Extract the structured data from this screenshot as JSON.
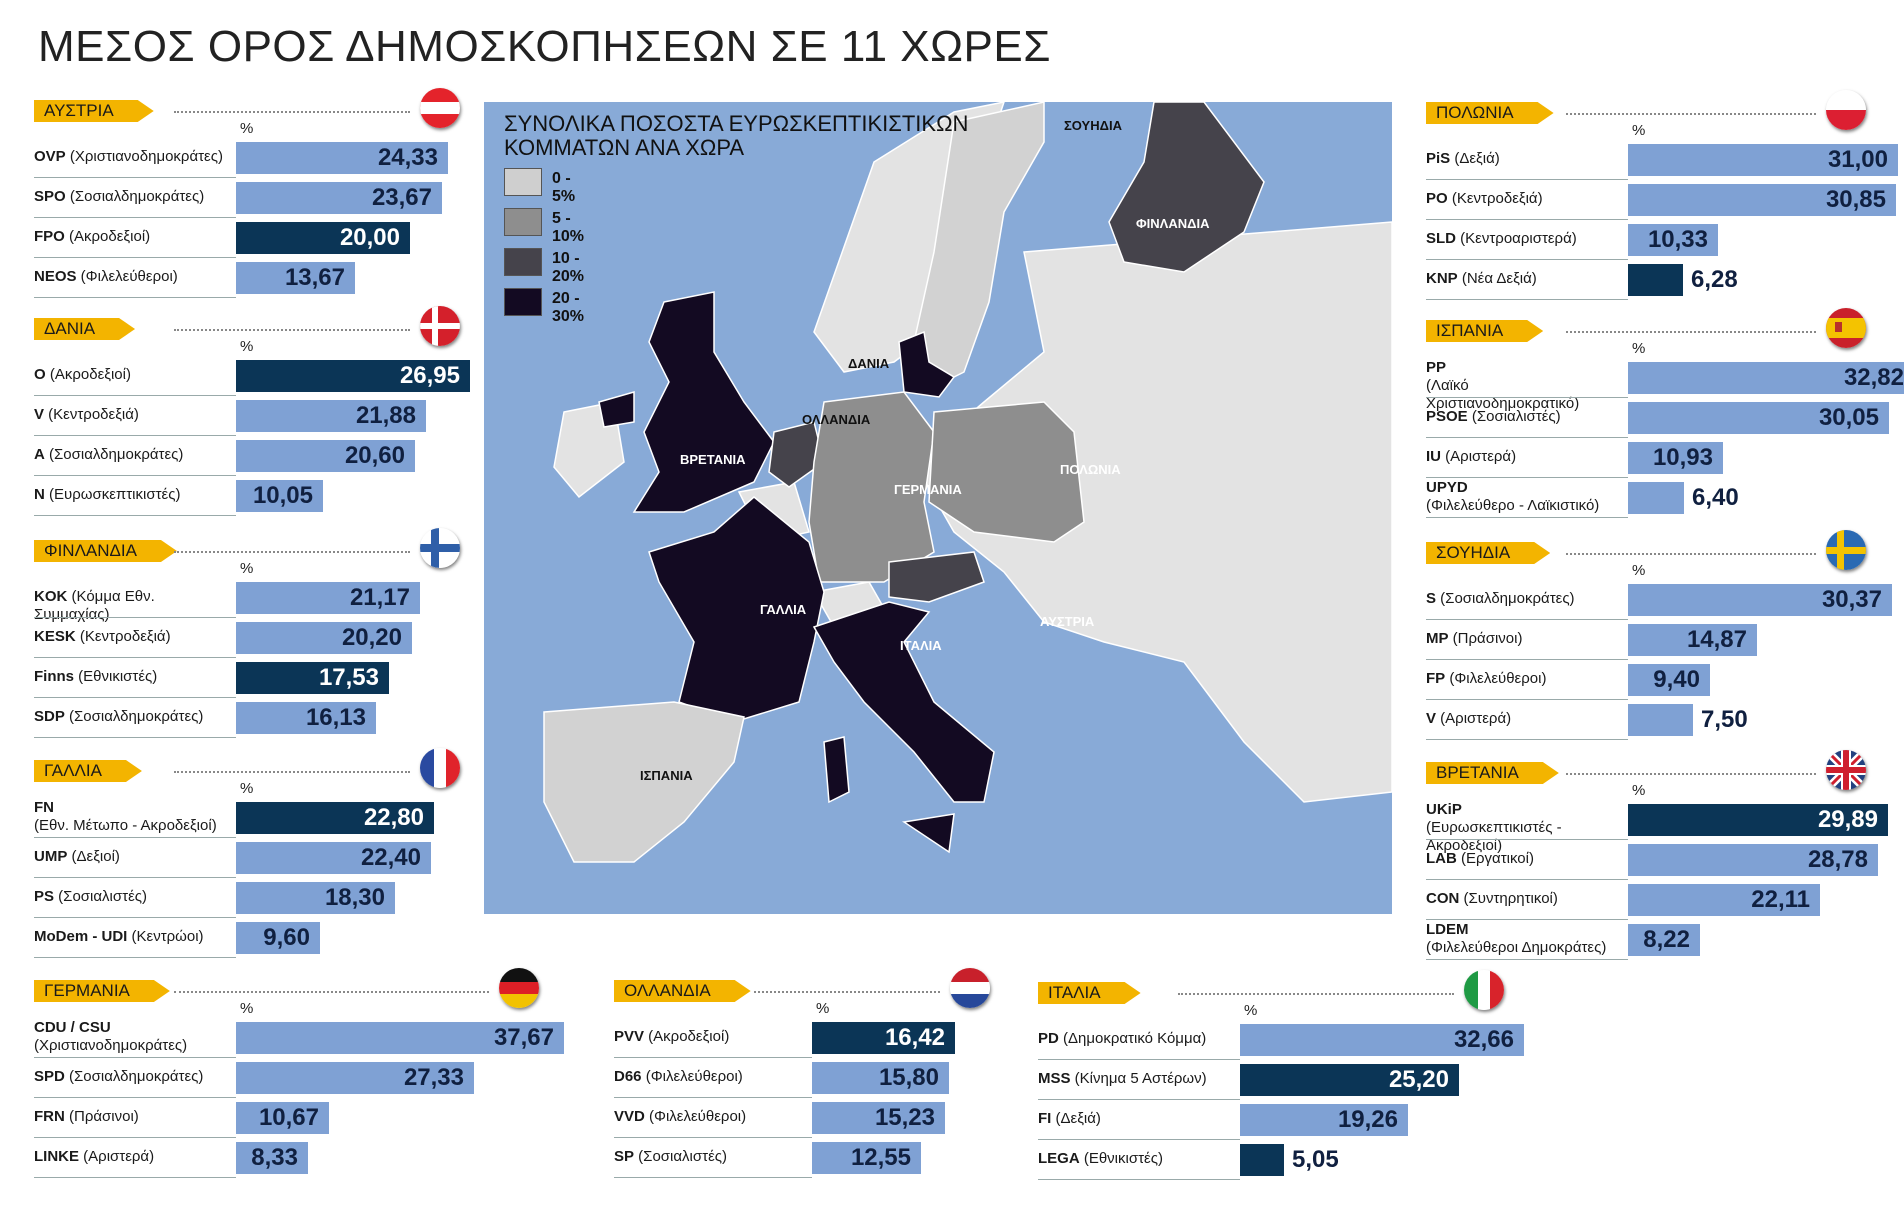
{
  "title": "ΜΕΣΟΣ ΟΡΟΣ ΔΗΜΟΣΚΟΠΗΣΕΩΝ ΣΕ 11 ΧΩΡΕΣ",
  "percent_symbol": "%",
  "colors": {
    "light_bar": "#7fa1d4",
    "dark_bar": "#0b3556",
    "tag": "#f3b400",
    "sea": "#88aad7"
  },
  "map": {
    "legend_title_1": "ΣΥΝΟΛΙΚΑ ΠΟΣΟΣΤΑ ΕΥΡΩΣΚΕΠΤΙΚΙΣΤΙΚΩΝ",
    "legend_title_2": "ΚΟΜΜΑΤΩΝ ΑΝΑ ΧΩΡΑ",
    "legend": [
      {
        "label": "0 - 5%",
        "color": "#cfcfcf"
      },
      {
        "label": "5 - 10%",
        "color": "#8e8e8e"
      },
      {
        "label": "10 - 20%",
        "color": "#45434b"
      },
      {
        "label": "20 - 30%",
        "color": "#130a22"
      }
    ],
    "labels": {
      "sweden": "ΣΟΥΗΔΙΑ",
      "finland": "ΦΙΝΛΑΝΔΙΑ",
      "denmark": "ΔΑΝΙΑ",
      "netherlands": "ΟΛΛΑΝΔΙΑ",
      "britain": "ΒΡΕΤΑΝΙΑ",
      "germany": "ΓΕΡΜΑΝΙΑ",
      "poland": "ΠΟΛΩΝΙΑ",
      "france": "ΓΑΛΛΙΑ",
      "italy": "ΙΤΑΛΙΑ",
      "austria": "ΑΥΣΤΡΙΑ",
      "spain": "ΙΣΠΑΝΙΑ"
    }
  },
  "chart_data": {
    "type": "bar",
    "countries": [
      {
        "key": "austria",
        "name": "ΑΥΣΤΡΙΑ",
        "flag": "austria-flag",
        "parties": [
          {
            "abbr": "OVP",
            "desc": "(Χριστιανοδημοκράτες)",
            "value": 24.33,
            "label": "24,33",
            "dark": false
          },
          {
            "abbr": "SPO",
            "desc": "(Σοσιαλδημοκράτες)",
            "value": 23.67,
            "label": "23,67",
            "dark": false
          },
          {
            "abbr": "FPO",
            "desc": "(Ακροδεξιοί)",
            "value": 20.0,
            "label": "20,00",
            "dark": true
          },
          {
            "abbr": "NEOS",
            "desc": "(Φιλελεύθεροι)",
            "value": 13.67,
            "label": "13,67",
            "dark": false
          }
        ]
      },
      {
        "key": "denmark",
        "name": "ΔΑΝΙΑ",
        "flag": "denmark-flag",
        "parties": [
          {
            "abbr": "O",
            "desc": "(Ακροδεξιοί)",
            "value": 26.95,
            "label": "26,95",
            "dark": true
          },
          {
            "abbr": "V",
            "desc": "(Κεντροδεξιά)",
            "value": 21.88,
            "label": "21,88",
            "dark": false
          },
          {
            "abbr": "A",
            "desc": "(Σοσιαλδημοκράτες)",
            "value": 20.6,
            "label": "20,60",
            "dark": false
          },
          {
            "abbr": "N",
            "desc": "(Ευρωσκεπτικιστές)",
            "value": 10.05,
            "label": "10,05",
            "dark": false
          }
        ]
      },
      {
        "key": "finland",
        "name": "ΦΙΝΛΑΝΔΙΑ",
        "flag": "finland-flag",
        "parties": [
          {
            "abbr": "KOK",
            "desc": "(Κόμμα Εθν. Συμμαχίας)",
            "value": 21.17,
            "label": "21,17",
            "dark": false
          },
          {
            "abbr": "KESK",
            "desc": "(Κεντροδεξιά)",
            "value": 20.2,
            "label": "20,20",
            "dark": false
          },
          {
            "abbr": "Finns",
            "desc": "(Εθνικιστές)",
            "value": 17.53,
            "label": "17,53",
            "dark": true
          },
          {
            "abbr": "SDP",
            "desc": "(Σοσιαλδημοκράτες)",
            "value": 16.13,
            "label": "16,13",
            "dark": false
          }
        ]
      },
      {
        "key": "france",
        "name": "ΓΑΛΛΙΑ",
        "flag": "france-flag",
        "parties": [
          {
            "abbr": "FN",
            "desc": "(Εθν. Μέτωπο - Ακροδεξιοί)",
            "value": 22.8,
            "label": "22,80",
            "dark": true,
            "twoLine": true
          },
          {
            "abbr": "UMP",
            "desc": "(Δεξιοί)",
            "value": 22.4,
            "label": "22,40",
            "dark": false
          },
          {
            "abbr": "PS",
            "desc": "(Σοσιαλιστές)",
            "value": 18.3,
            "label": "18,30",
            "dark": false
          },
          {
            "abbr": "MoDem - UDI",
            "desc": "(Κεντρώοι)",
            "value": 9.6,
            "label": "9,60",
            "dark": false
          }
        ]
      },
      {
        "key": "germany",
        "name": "ΓΕΡΜΑΝΙΑ",
        "flag": "germany-flag",
        "parties": [
          {
            "abbr": "CDU / CSU",
            "desc": "(Χριστιανοδημοκράτες)",
            "value": 37.67,
            "label": "37,67",
            "dark": false,
            "twoLine": true
          },
          {
            "abbr": "SPD",
            "desc": "(Σοσιαλδημοκράτες)",
            "value": 27.33,
            "label": "27,33",
            "dark": false
          },
          {
            "abbr": "FRN",
            "desc": "(Πράσινοι)",
            "value": 10.67,
            "label": "10,67",
            "dark": false
          },
          {
            "abbr": "LINKE",
            "desc": "(Αριστερά)",
            "value": 8.33,
            "label": "8,33",
            "dark": false
          }
        ]
      },
      {
        "key": "netherlands",
        "name": "ΟΛΛΑΝΔΙΑ",
        "flag": "netherlands-flag",
        "parties": [
          {
            "abbr": "PVV",
            "desc": "(Ακροδεξιοί)",
            "value": 16.42,
            "label": "16,42",
            "dark": true
          },
          {
            "abbr": "D66",
            "desc": "(Φιλελεύθεροι)",
            "value": 15.8,
            "label": "15,80",
            "dark": false
          },
          {
            "abbr": "VVD",
            "desc": "(Φιλελεύθεροι)",
            "value": 15.23,
            "label": "15,23",
            "dark": false
          },
          {
            "abbr": "SP",
            "desc": "(Σοσιαλιστές)",
            "value": 12.55,
            "label": "12,55",
            "dark": false
          }
        ]
      },
      {
        "key": "italy",
        "name": "ΙΤΑΛΙΑ",
        "flag": "italy-flag",
        "parties": [
          {
            "abbr": "PD",
            "desc": "(Δημοκρατικό Κόμμα)",
            "value": 32.66,
            "label": "32,66",
            "dark": false
          },
          {
            "abbr": "MSS",
            "desc": "(Κίνημα 5 Αστέρων)",
            "value": 25.2,
            "label": "25,20",
            "dark": true
          },
          {
            "abbr": "FI",
            "desc": "(Δεξιά)",
            "value": 19.26,
            "label": "19,26",
            "dark": false
          },
          {
            "abbr": "LEGA",
            "desc": "(Εθνικιστές)",
            "value": 5.05,
            "label": "5,05",
            "dark": true
          }
        ]
      },
      {
        "key": "poland",
        "name": "ΠΟΛΩΝΙΑ",
        "flag": "poland-flag",
        "parties": [
          {
            "abbr": "PiS",
            "desc": "(Δεξιά)",
            "value": 31.0,
            "label": "31,00",
            "dark": false
          },
          {
            "abbr": "PO",
            "desc": "(Κεντροδεξιά)",
            "value": 30.85,
            "label": "30,85",
            "dark": false
          },
          {
            "abbr": "SLD",
            "desc": "(Κεντροαριστερά)",
            "value": 10.33,
            "label": "10,33",
            "dark": false
          },
          {
            "abbr": "KNP",
            "desc": "(Νέα Δεξιά)",
            "value": 6.28,
            "label": "6,28",
            "dark": true
          }
        ]
      },
      {
        "key": "spain",
        "name": "ΙΣΠΑΝΙΑ",
        "flag": "spain-flag",
        "parties": [
          {
            "abbr": "PP",
            "desc": "(Λαϊκό Χριστιανοδημοκρατικό)",
            "value": 32.82,
            "label": "32,82",
            "dark": false,
            "twoLine": true
          },
          {
            "abbr": "PSOE",
            "desc": "(Σοσιαλιστές)",
            "value": 30.05,
            "label": "30,05",
            "dark": false
          },
          {
            "abbr": "IU",
            "desc": "(Αριστερά)",
            "value": 10.93,
            "label": "10,93",
            "dark": false
          },
          {
            "abbr": "UPYD",
            "desc": "(Φιλελεύθερο - Λαϊκιστικό)",
            "value": 6.4,
            "label": "6,40",
            "dark": false,
            "twoLine": true
          }
        ]
      },
      {
        "key": "sweden",
        "name": "ΣΟΥΗΔΙΑ",
        "flag": "sweden-flag",
        "parties": [
          {
            "abbr": "S",
            "desc": "(Σοσιαλδημοκράτες)",
            "value": 30.37,
            "label": "30,37",
            "dark": false
          },
          {
            "abbr": "MP",
            "desc": "(Πράσινοι)",
            "value": 14.87,
            "label": "14,87",
            "dark": false
          },
          {
            "abbr": "FP",
            "desc": "(Φιλελεύθεροι)",
            "value": 9.4,
            "label": "9,40",
            "dark": false
          },
          {
            "abbr": "V",
            "desc": "(Αριστερά)",
            "value": 7.5,
            "label": "7,50",
            "dark": false
          }
        ]
      },
      {
        "key": "britain",
        "name": "ΒΡΕΤΑΝΙΑ",
        "flag": "uk-flag",
        "parties": [
          {
            "abbr": "UKiP",
            "desc": "(Ευρωσκεπτικιστές - Ακροδεξιοί)",
            "value": 29.89,
            "label": "29,89",
            "dark": true,
            "twoLine": true
          },
          {
            "abbr": "LAB",
            "desc": "(Εργατικοί)",
            "value": 28.78,
            "label": "28,78",
            "dark": false
          },
          {
            "abbr": "CON",
            "desc": "(Συντηρητικοί)",
            "value": 22.11,
            "label": "22,11",
            "dark": false
          },
          {
            "abbr": "LDEM",
            "desc": "(Φιλελεύθεροι Δημοκράτες)",
            "value": 8.22,
            "label": "8,22",
            "dark": false,
            "twoLine": true
          }
        ]
      }
    ]
  }
}
